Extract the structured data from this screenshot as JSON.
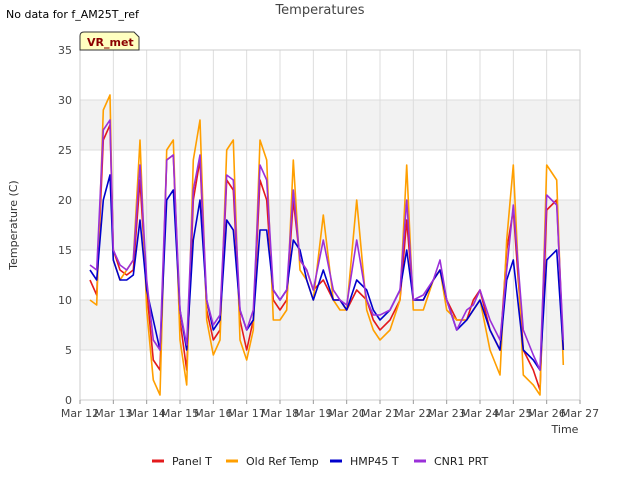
{
  "chart_data": {
    "type": "line",
    "title": "Temperatures",
    "note": "No data for f_AM25T_ref",
    "badge": "VR_met",
    "xlabel": "Time",
    "ylabel": "Temperature (C)",
    "xlim": [
      12,
      27
    ],
    "ylim": [
      0,
      35
    ],
    "x_ticks": [
      {
        "value": 12,
        "label": "Mar 12"
      },
      {
        "value": 13,
        "label": "Mar 13"
      },
      {
        "value": 14,
        "label": "Mar 14"
      },
      {
        "value": 15,
        "label": "Mar 15"
      },
      {
        "value": 16,
        "label": "Mar 16"
      },
      {
        "value": 17,
        "label": "Mar 17"
      },
      {
        "value": 18,
        "label": "Mar 18"
      },
      {
        "value": 19,
        "label": "Mar 19"
      },
      {
        "value": 20,
        "label": "Mar 20"
      },
      {
        "value": 21,
        "label": "Mar 21"
      },
      {
        "value": 22,
        "label": "Mar 22"
      },
      {
        "value": 23,
        "label": "Mar 23"
      },
      {
        "value": 24,
        "label": "Mar 24"
      },
      {
        "value": 25,
        "label": "Mar 25"
      },
      {
        "value": 26,
        "label": "Mar 26"
      },
      {
        "value": 27,
        "label": "Mar 27"
      }
    ],
    "y_ticks": [
      0,
      5,
      10,
      15,
      20,
      25,
      30,
      35
    ],
    "band_color": "#f2f2f2",
    "grid_color": "#dddddd",
    "legend_position": "bottom",
    "series": [
      {
        "name": "Panel T",
        "color": "#e31a1c",
        "x": [
          12.3,
          12.5,
          12.7,
          12.9,
          13.0,
          13.2,
          13.4,
          13.6,
          13.8,
          14.0,
          14.2,
          14.4,
          14.6,
          14.8,
          15.0,
          15.2,
          15.4,
          15.6,
          15.8,
          16.0,
          16.2,
          16.4,
          16.6,
          16.8,
          17.0,
          17.2,
          17.4,
          17.6,
          17.8,
          18.0,
          18.2,
          18.4,
          18.6,
          18.8,
          19.0,
          19.3,
          19.6,
          19.8,
          20.0,
          20.3,
          20.6,
          20.8,
          21.0,
          21.3,
          21.6,
          21.8,
          22.0,
          22.3,
          22.6,
          22.8,
          23.0,
          23.3,
          23.6,
          23.8,
          24.0,
          24.3,
          24.6,
          24.8,
          25.0,
          25.3,
          25.6,
          25.8,
          26.0,
          26.3,
          26.5
        ],
        "y": [
          12,
          10.5,
          26,
          27.5,
          15,
          13,
          12.5,
          13,
          22,
          11,
          4,
          3,
          24,
          24.5,
          8,
          3,
          20,
          24,
          9,
          6,
          7,
          22,
          21,
          8,
          5,
          8,
          22,
          20,
          10,
          9,
          10,
          20,
          14,
          13,
          11,
          12,
          10,
          10,
          9,
          11,
          10,
          8,
          7,
          8,
          10,
          18,
          10,
          10,
          12,
          13,
          10,
          8,
          8,
          10,
          11,
          7,
          5,
          15,
          19,
          5,
          3,
          1,
          19,
          20,
          5
        ]
      },
      {
        "name": "Old Ref Temp",
        "color": "#ff9f00",
        "x": [
          12.3,
          12.5,
          12.7,
          12.9,
          13.0,
          13.2,
          13.4,
          13.6,
          13.8,
          14.0,
          14.2,
          14.4,
          14.6,
          14.8,
          15.0,
          15.2,
          15.4,
          15.6,
          15.8,
          16.0,
          16.2,
          16.4,
          16.6,
          16.8,
          17.0,
          17.2,
          17.4,
          17.6,
          17.8,
          18.0,
          18.2,
          18.4,
          18.6,
          18.8,
          19.0,
          19.3,
          19.6,
          19.8,
          20.0,
          20.3,
          20.6,
          20.8,
          21.0,
          21.3,
          21.6,
          21.8,
          22.0,
          22.3,
          22.6,
          22.8,
          23.0,
          23.3,
          23.6,
          23.8,
          24.0,
          24.3,
          24.6,
          24.8,
          25.0,
          25.3,
          25.6,
          25.8,
          26.0,
          26.3,
          26.5
        ],
        "y": [
          10,
          9.5,
          29,
          30.5,
          14,
          12,
          13,
          14,
          26,
          9,
          2,
          0.5,
          25,
          26,
          6,
          1.5,
          24,
          28,
          8,
          4.5,
          6,
          25,
          26,
          6,
          4,
          7,
          26,
          24,
          8,
          8,
          9,
          24,
          13,
          12,
          10,
          18.5,
          10,
          9,
          9,
          20,
          9,
          7,
          6,
          7,
          10,
          23.5,
          9,
          9,
          12,
          13,
          9,
          8,
          8,
          9,
          10,
          5,
          2.5,
          16,
          23.5,
          2.5,
          1.5,
          0.5,
          23.5,
          22,
          3.5
        ]
      },
      {
        "name": "HMP45 T",
        "color": "#0000cc",
        "x": [
          12.3,
          12.5,
          12.7,
          12.9,
          13.0,
          13.2,
          13.4,
          13.6,
          13.8,
          14.0,
          14.2,
          14.4,
          14.6,
          14.8,
          15.0,
          15.2,
          15.4,
          15.6,
          15.8,
          16.0,
          16.2,
          16.4,
          16.6,
          16.8,
          17.0,
          17.2,
          17.4,
          17.6,
          17.8,
          18.0,
          18.2,
          18.4,
          18.6,
          18.8,
          19.0,
          19.3,
          19.6,
          19.8,
          20.0,
          20.3,
          20.6,
          20.8,
          21.0,
          21.3,
          21.6,
          21.8,
          22.0,
          22.3,
          22.6,
          22.8,
          23.0,
          23.3,
          23.6,
          23.8,
          24.0,
          24.3,
          24.6,
          24.8,
          25.0,
          25.3,
          25.6,
          25.8,
          26.0,
          26.3,
          26.5
        ],
        "y": [
          13,
          12,
          20,
          22.5,
          14,
          12,
          12,
          12.5,
          18,
          11,
          8,
          5,
          20,
          21,
          9,
          5,
          16,
          20,
          10,
          7,
          8,
          18,
          17,
          9,
          7,
          8,
          17,
          17,
          11,
          10,
          11,
          16,
          15,
          12,
          10,
          13,
          10,
          10,
          9,
          12,
          11,
          9,
          8,
          9,
          11,
          15,
          10,
          10,
          12,
          13,
          10,
          7,
          8,
          9,
          10,
          7,
          5,
          12,
          14,
          5,
          4,
          3,
          14,
          15,
          5
        ]
      },
      {
        "name": "CNR1 PRT",
        "color": "#9b30d9",
        "x": [
          12.3,
          12.5,
          12.7,
          12.9,
          13.0,
          13.2,
          13.4,
          13.6,
          13.8,
          14.0,
          14.2,
          14.4,
          14.6,
          14.8,
          15.0,
          15.2,
          15.4,
          15.6,
          15.8,
          16.0,
          16.2,
          16.4,
          16.6,
          16.8,
          17.0,
          17.2,
          17.4,
          17.6,
          17.8,
          18.0,
          18.2,
          18.4,
          18.6,
          18.8,
          19.0,
          19.3,
          19.6,
          19.8,
          20.0,
          20.3,
          20.6,
          20.8,
          21.0,
          21.3,
          21.6,
          21.8,
          22.0,
          22.3,
          22.6,
          22.8,
          23.0,
          23.3,
          23.6,
          23.8,
          24.0,
          24.3,
          24.6,
          24.8,
          25.0,
          25.3,
          25.6,
          25.8,
          26.0,
          26.3,
          26.5
        ],
        "y": [
          13.5,
          13,
          27,
          28,
          15,
          13.5,
          13,
          14,
          23.5,
          12,
          6,
          5,
          24,
          24.5,
          9,
          5.5,
          21,
          24.5,
          10,
          7.5,
          8.5,
          22.5,
          22,
          9,
          7,
          9,
          23.5,
          22,
          11,
          10,
          11,
          21,
          14,
          13,
          11,
          16,
          11,
          10,
          9.5,
          16,
          10,
          8.5,
          8.5,
          9,
          11,
          20,
          10,
          10.5,
          12,
          14,
          10,
          7,
          9,
          9.5,
          11,
          8,
          6,
          13,
          19.5,
          7,
          4.5,
          3,
          20.5,
          19.5,
          6
        ]
      }
    ]
  }
}
